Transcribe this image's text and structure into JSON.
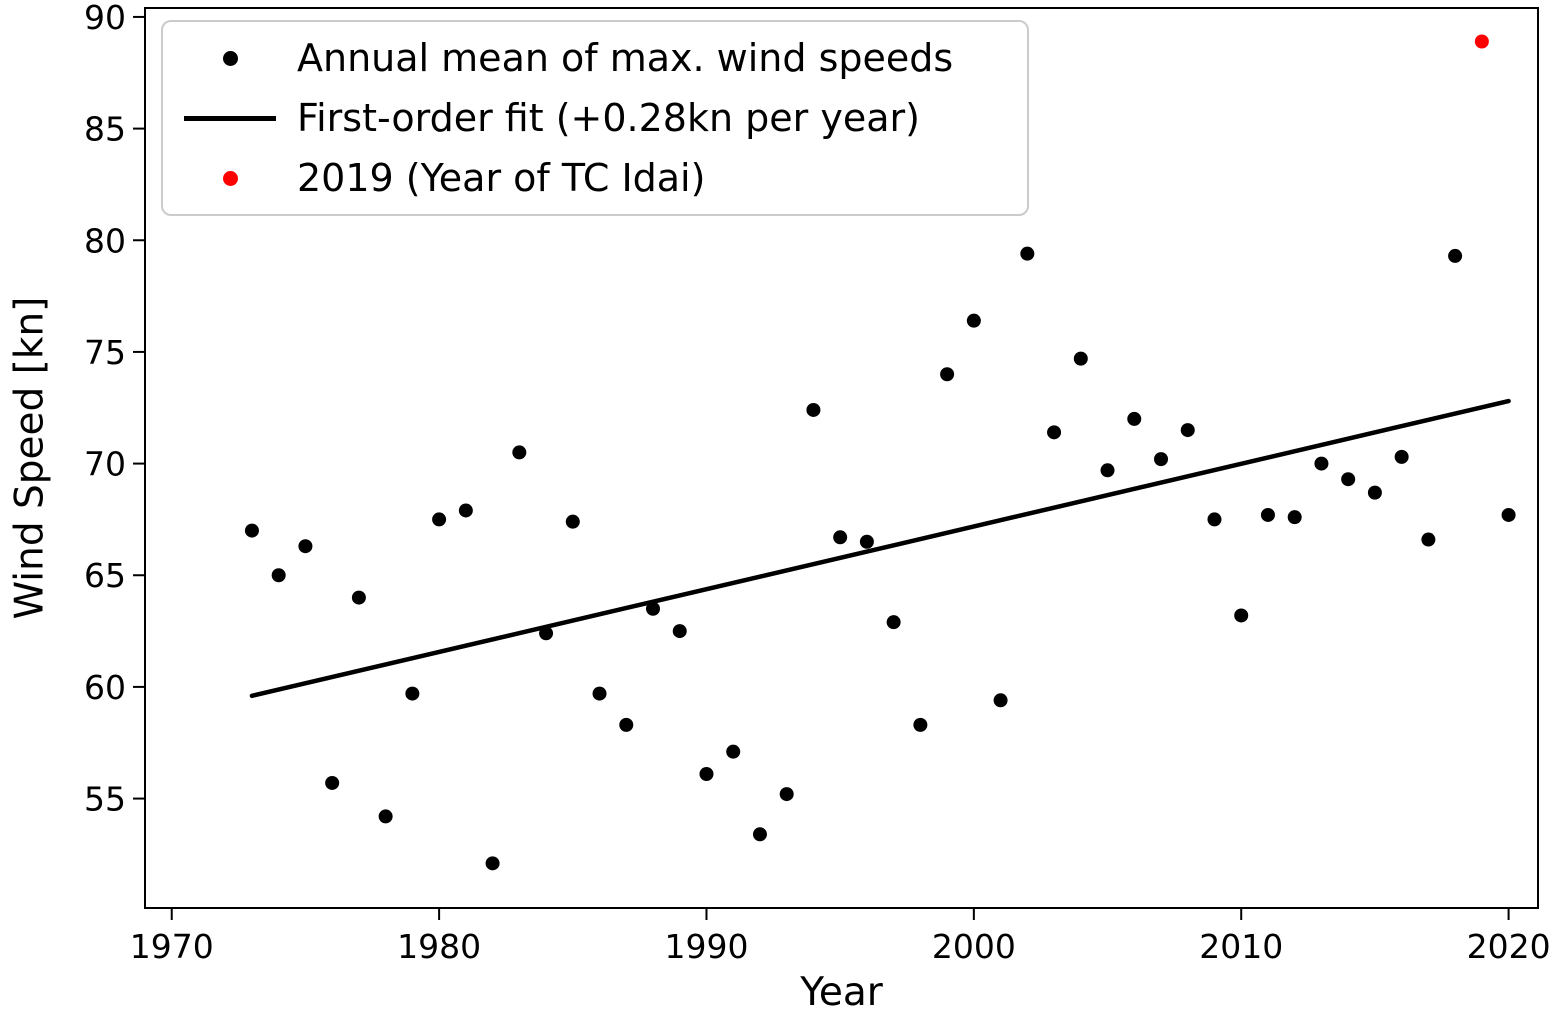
{
  "chart_data": {
    "type": "scatter",
    "title": "",
    "xlabel": "Year",
    "ylabel": "Wind Speed [kn]",
    "xlim": [
      1969.0,
      2021.1
    ],
    "ylim": [
      50.1,
      90.4
    ],
    "xticks": [
      1970,
      1980,
      1990,
      2000,
      2010,
      2020
    ],
    "yticks": [
      55,
      60,
      65,
      70,
      75,
      80,
      85,
      90
    ],
    "grid": false,
    "axis_color": "#000000",
    "background_color": "#ffffff",
    "legend": {
      "position": "upper left",
      "entries": [
        {
          "label": "Annual mean of max. wind speeds",
          "marker": "dot",
          "color": "#000000"
        },
        {
          "label": "First-order fit (+0.28kn per year)",
          "marker": "line",
          "color": "#000000"
        },
        {
          "label": "2019 (Year of TC Idai)",
          "marker": "dot",
          "color": "#ff0000"
        }
      ]
    },
    "series": [
      {
        "name": "Annual mean of max. wind speeds",
        "kind": "scatter",
        "color": "#000000",
        "points": [
          [
            1973,
            67.0
          ],
          [
            1974,
            65.0
          ],
          [
            1975,
            66.3
          ],
          [
            1976,
            55.7
          ],
          [
            1977,
            64.0
          ],
          [
            1978,
            54.2
          ],
          [
            1979,
            59.7
          ],
          [
            1980,
            67.5
          ],
          [
            1981,
            67.9
          ],
          [
            1982,
            52.1
          ],
          [
            1983,
            70.5
          ],
          [
            1984,
            62.4
          ],
          [
            1985,
            67.4
          ],
          [
            1986,
            59.7
          ],
          [
            1987,
            58.3
          ],
          [
            1988,
            63.5
          ],
          [
            1989,
            62.5
          ],
          [
            1990,
            56.1
          ],
          [
            1991,
            57.1
          ],
          [
            1992,
            53.4
          ],
          [
            1993,
            55.2
          ],
          [
            1994,
            72.4
          ],
          [
            1995,
            66.7
          ],
          [
            1996,
            66.5
          ],
          [
            1997,
            62.9
          ],
          [
            1998,
            58.3
          ],
          [
            1999,
            74.0
          ],
          [
            2000,
            76.4
          ],
          [
            2001,
            59.4
          ],
          [
            2002,
            79.4
          ],
          [
            2003,
            71.4
          ],
          [
            2004,
            74.7
          ],
          [
            2005,
            69.7
          ],
          [
            2006,
            72.0
          ],
          [
            2007,
            70.2
          ],
          [
            2008,
            71.5
          ],
          [
            2009,
            67.5
          ],
          [
            2010,
            63.2
          ],
          [
            2011,
            67.7
          ],
          [
            2012,
            67.6
          ],
          [
            2013,
            70.0
          ],
          [
            2014,
            69.3
          ],
          [
            2015,
            68.7
          ],
          [
            2016,
            70.3
          ],
          [
            2017,
            66.6
          ],
          [
            2018,
            79.3
          ],
          [
            2020,
            67.7
          ]
        ]
      },
      {
        "name": "First-order fit (+0.28kn per year)",
        "kind": "line",
        "color": "#000000",
        "slope_kn_per_year": 0.28,
        "points": [
          [
            1973,
            59.6
          ],
          [
            2020,
            72.8
          ]
        ]
      },
      {
        "name": "2019 (Year of TC Idai)",
        "kind": "scatter",
        "color": "#ff0000",
        "points": [
          [
            2019,
            88.9
          ]
        ]
      }
    ]
  }
}
